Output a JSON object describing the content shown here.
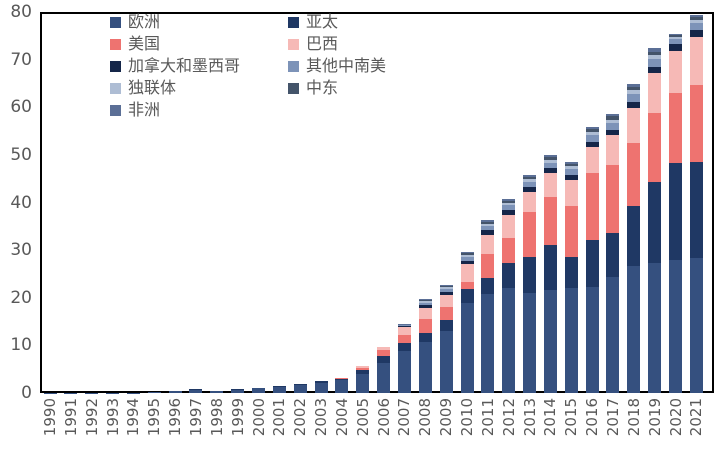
{
  "chart_data": {
    "type": "bar",
    "stacked": true,
    "title": "",
    "xlabel": "",
    "ylabel": "",
    "ylim": [
      0,
      80
    ],
    "yticks": [
      "0",
      "10",
      "20",
      "30",
      "40",
      "50",
      "60",
      "70",
      "80"
    ],
    "grid": false,
    "legend_position": "top-left-inside",
    "legend_columns": 2,
    "axis_text_color": "#595959",
    "frame_color": "#000000",
    "categories": [
      "1990",
      "1991",
      "1992",
      "1993",
      "1994",
      "1995",
      "1996",
      "1997",
      "1998",
      "1999",
      "2000",
      "2001",
      "2002",
      "2003",
      "2004",
      "2005",
      "2006",
      "2007",
      "2008",
      "2009",
      "2010",
      "2011",
      "2012",
      "2013",
      "2014",
      "2015",
      "2016",
      "2017",
      "2018",
      "2019",
      "2020",
      "2021"
    ],
    "series": [
      {
        "name": "欧洲",
        "color": "#35507F",
        "values": [
          0.02,
          0.03,
          0.05,
          0.08,
          0.1,
          0.15,
          0.35,
          0.7,
          0.45,
          0.7,
          0.95,
          1.25,
          1.6,
          2.2,
          2.7,
          3.9,
          6.4,
          8.9,
          10.8,
          13.1,
          18.8,
          20.8,
          22.0,
          20.9,
          21.6,
          22.0,
          22.3,
          24.4,
          26.7,
          27.2,
          27.9,
          28.3
        ]
      },
      {
        "name": "亚太",
        "color": "#1F3864",
        "values": [
          0,
          0,
          0,
          0,
          0,
          0.02,
          0.05,
          0.1,
          0.05,
          0.1,
          0.15,
          0.15,
          0.2,
          0.25,
          0.3,
          0.9,
          1.4,
          1.5,
          1.9,
          2.2,
          3.0,
          3.3,
          5.4,
          7.7,
          9.5,
          6.6,
          9.8,
          9.1,
          12.6,
          17.2,
          20.3,
          20.3
        ]
      },
      {
        "name": "美国",
        "color": "#EE7370",
        "values": [
          0,
          0,
          0,
          0,
          0,
          0,
          0,
          0,
          0,
          0,
          0.05,
          0.1,
          0.1,
          0.15,
          0.2,
          0.5,
          1.2,
          1.8,
          2.8,
          2.7,
          1.6,
          5.2,
          5.1,
          9.5,
          10.1,
          10.7,
          14.0,
          14.4,
          13.1,
          14.3,
          14.9,
          16.1
        ]
      },
      {
        "name": "巴西",
        "color": "#F6B9B6",
        "values": [
          0,
          0,
          0,
          0,
          0,
          0,
          0,
          0,
          0,
          0,
          0,
          0,
          0,
          0,
          0.05,
          0.3,
          0.6,
          1.6,
          2.3,
          2.6,
          3.7,
          3.9,
          4.8,
          4.2,
          4.9,
          5.4,
          5.6,
          6.3,
          7.4,
          8.4,
          8.8,
          10.1
        ]
      },
      {
        "name": "加拿大和墨西哥",
        "color": "#152649",
        "values": [
          0,
          0,
          0,
          0,
          0,
          0,
          0,
          0,
          0,
          0,
          0,
          0,
          0,
          0,
          0,
          0.1,
          0.1,
          0.3,
          0.7,
          0.7,
          0.7,
          1.0,
          1.1,
          1.0,
          1.1,
          1.1,
          1.1,
          1.0,
          1.4,
          1.4,
          1.4,
          1.4
        ]
      },
      {
        "name": "其他中南美",
        "color": "#7D93B8",
        "values": [
          0,
          0,
          0,
          0,
          0,
          0,
          0,
          0,
          0,
          0,
          0,
          0,
          0,
          0,
          0,
          0,
          0,
          0.15,
          0.5,
          0.6,
          0.8,
          0.9,
          1.0,
          1.1,
          1.2,
          1.2,
          1.3,
          1.5,
          1.6,
          1.7,
          1.0,
          1.4
        ]
      },
      {
        "name": "独联体",
        "color": "#AEBDD4",
        "values": [
          0,
          0,
          0,
          0,
          0,
          0,
          0,
          0,
          0,
          0,
          0,
          0,
          0,
          0,
          0,
          0,
          0,
          0.05,
          0.3,
          0.3,
          0.4,
          0.5,
          0.5,
          0.5,
          0.6,
          0.6,
          0.7,
          0.7,
          0.8,
          0.8,
          0.5,
          0.7
        ]
      },
      {
        "name": "中东",
        "color": "#44546A",
        "values": [
          0,
          0,
          0,
          0,
          0,
          0,
          0,
          0,
          0,
          0,
          0,
          0,
          0,
          0,
          0,
          0,
          0,
          0.05,
          0.2,
          0.3,
          0.4,
          0.4,
          0.4,
          0.5,
          0.5,
          0.5,
          0.6,
          0.7,
          0.7,
          0.7,
          0.4,
          0.6
        ]
      },
      {
        "name": "非洲",
        "color": "#5B6F96",
        "values": [
          0,
          0,
          0,
          0,
          0,
          0,
          0,
          0,
          0,
          0,
          0,
          0,
          0,
          0,
          0,
          0,
          0,
          0.05,
          0.2,
          0.2,
          0.3,
          0.3,
          0.4,
          0.4,
          0.5,
          0.5,
          0.5,
          0.6,
          0.7,
          0.7,
          0.3,
          0.5
        ]
      }
    ]
  }
}
